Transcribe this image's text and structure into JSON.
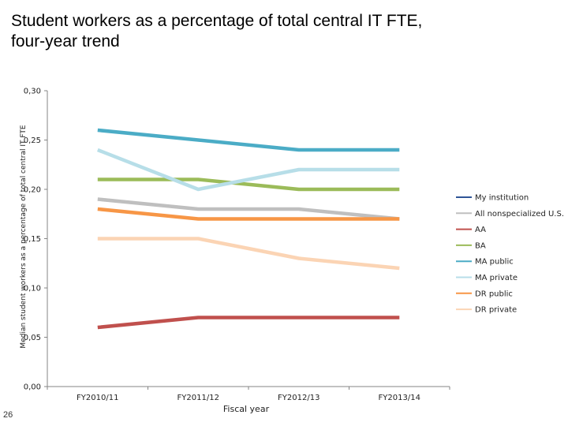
{
  "slide": {
    "title_line1": "Student workers as a percentage of total central IT FTE,",
    "title_line2": "four-year trend",
    "page_number": "26"
  },
  "chart_data": {
    "type": "line",
    "title": "",
    "xlabel": "Fiscal year",
    "ylabel": "Median student workers as a percentage of total central IT FTE",
    "categories": [
      "FY2010/11",
      "FY2011/12",
      "FY2012/13",
      "FY2013/14"
    ],
    "ylim": [
      0,
      0.3
    ],
    "yticks": [
      "0,00",
      "0,05",
      "0,10",
      "0,15",
      "0,20",
      "0,25",
      "0,30"
    ],
    "grid": false,
    "legend_position": "right",
    "series": [
      {
        "name": "My institution",
        "color": "#2f5597",
        "values": [
          null,
          null,
          null,
          null
        ]
      },
      {
        "name": "All nonspecialized U.S.",
        "color": "#bfbfbf",
        "values": [
          0.19,
          0.18,
          0.18,
          0.17
        ]
      },
      {
        "name": "AA",
        "color": "#c0504d",
        "values": [
          0.06,
          0.07,
          0.07,
          0.07
        ]
      },
      {
        "name": "BA",
        "color": "#9bbb59",
        "values": [
          0.21,
          0.21,
          0.2,
          0.2
        ]
      },
      {
        "name": "MA public",
        "color": "#4bacc6",
        "values": [
          0.26,
          0.25,
          0.24,
          0.24
        ]
      },
      {
        "name": "MA private",
        "color": "#b7dee8",
        "values": [
          0.24,
          0.2,
          0.22,
          0.22
        ]
      },
      {
        "name": "DR public",
        "color": "#f79646",
        "values": [
          0.18,
          0.17,
          0.17,
          0.17
        ]
      },
      {
        "name": "DR private",
        "color": "#fbd4b4",
        "values": [
          0.15,
          0.15,
          0.13,
          0.12
        ]
      }
    ]
  }
}
